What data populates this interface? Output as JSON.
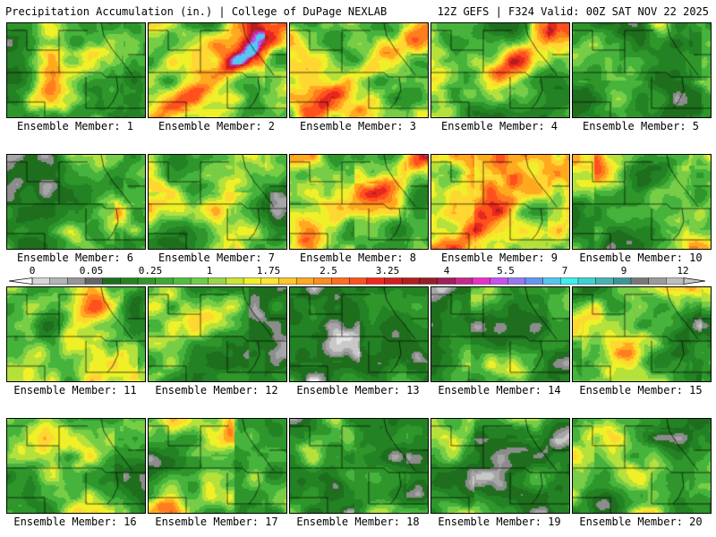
{
  "header": {
    "title_left": "Precipitation Accumulation (in.) | College of DuPage NEXLAB",
    "title_right": "12Z GEFS | F324 Valid: 00Z SAT NOV 22 2025"
  },
  "colorbar": {
    "labels": [
      "0",
      "0.05",
      "0.25",
      "1",
      "1.75",
      "2.5",
      "3.25",
      "4",
      "5.5",
      "7",
      "9",
      "12"
    ],
    "colors": [
      "#d6d6d6",
      "#b4b4b4",
      "#969696",
      "#646464",
      "#1e6e1e",
      "#28821e",
      "#329628",
      "#3caa32",
      "#50be3c",
      "#6ecd46",
      "#96d746",
      "#c8e632",
      "#f0f028",
      "#ffe632",
      "#ffc828",
      "#ffaa1e",
      "#ff8c1e",
      "#ff6e1e",
      "#ff501e",
      "#f0281e",
      "#d21e1e",
      "#b41e1e",
      "#961e28",
      "#a01e5a",
      "#c8288c",
      "#e632c8",
      "#c850f0",
      "#9678f0",
      "#6496f0",
      "#50c8f0",
      "#3cf0f0",
      "#3cd2d2",
      "#46b4b4",
      "#3c9696",
      "#787878",
      "#9a9a9a",
      "#bebebe"
    ]
  },
  "member_prefix": "Ensemble Member:",
  "members": [
    {
      "number": "1",
      "accent": 0.0
    },
    {
      "number": "2",
      "accent": 0.6
    },
    {
      "number": "3",
      "accent": 0.6
    },
    {
      "number": "4",
      "accent": 0.3
    },
    {
      "number": "5",
      "accent": -0.6
    },
    {
      "number": "6",
      "accent": -0.3
    },
    {
      "number": "7",
      "accent": -0.2
    },
    {
      "number": "8",
      "accent": 0.3
    },
    {
      "number": "9",
      "accent": 0.4
    },
    {
      "number": "10",
      "accent": 0.2
    },
    {
      "number": "11",
      "accent": 0.3
    },
    {
      "number": "12",
      "accent": -0.3
    },
    {
      "number": "13",
      "accent": -0.6
    },
    {
      "number": "14",
      "accent": -0.4
    },
    {
      "number": "15",
      "accent": 0.0
    },
    {
      "number": "16",
      "accent": -0.1
    },
    {
      "number": "17",
      "accent": -0.2
    },
    {
      "number": "18",
      "accent": -0.5
    },
    {
      "number": "19",
      "accent": -0.5
    },
    {
      "number": "20",
      "accent": -0.3
    }
  ]
}
